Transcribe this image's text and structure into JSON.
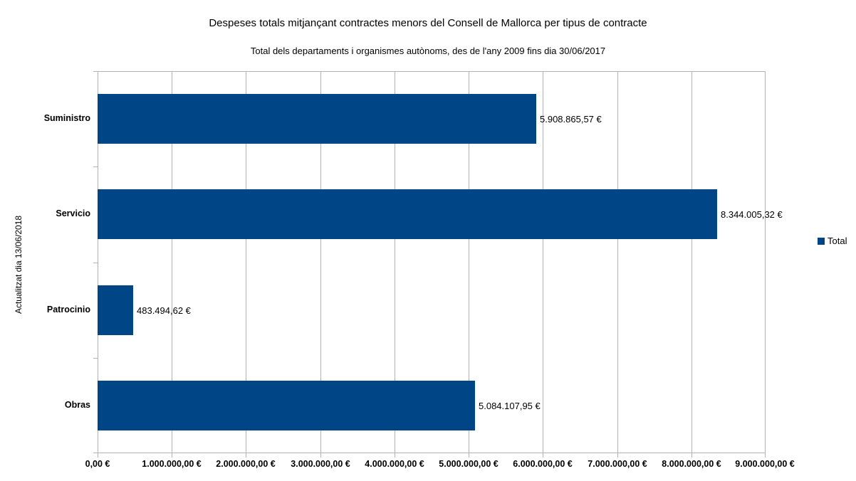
{
  "chart_data": {
    "type": "bar",
    "orientation": "horizontal",
    "title": "Despeses totals mitjançant contractes menors del Consell de Mallorca per tipus de contracte",
    "subtitle": "Total dels departaments i organismes autònoms, des de l'any 2009 fins dia 30/06/2017",
    "side_note": "Actualitzat dia 13/06/2018",
    "categories": [
      "Suministro",
      "Servicio",
      "Patrocinio",
      "Obras"
    ],
    "series": [
      {
        "name": "Total",
        "values": [
          5908865.57,
          8344005.32,
          483494.62,
          5084107.95
        ],
        "value_labels": [
          "5.908.865,57 €",
          "8.344.005,32 €",
          "483.494,62 €",
          "5.084.107,95 €"
        ],
        "color": "#004586"
      }
    ],
    "xlabel": "",
    "ylabel": "",
    "xlim": [
      0,
      9000000
    ],
    "x_tick_interval": 1000000,
    "x_tick_labels": [
      "0,00 €",
      "1.000.000,00 €",
      "2.000.000,00 €",
      "3.000.000,00 €",
      "4.000.000,00 €",
      "5.000.000,00 €",
      "6.000.000,00 €",
      "7.000.000,00 €",
      "8.000.000,00 €",
      "9.000.000,00 €"
    ],
    "grid": true,
    "grid_color": "#b3b3b3",
    "background_color": "#ffffff",
    "legend": {
      "position": "right",
      "entries": [
        {
          "label": "Total",
          "color": "#004586"
        }
      ]
    }
  }
}
